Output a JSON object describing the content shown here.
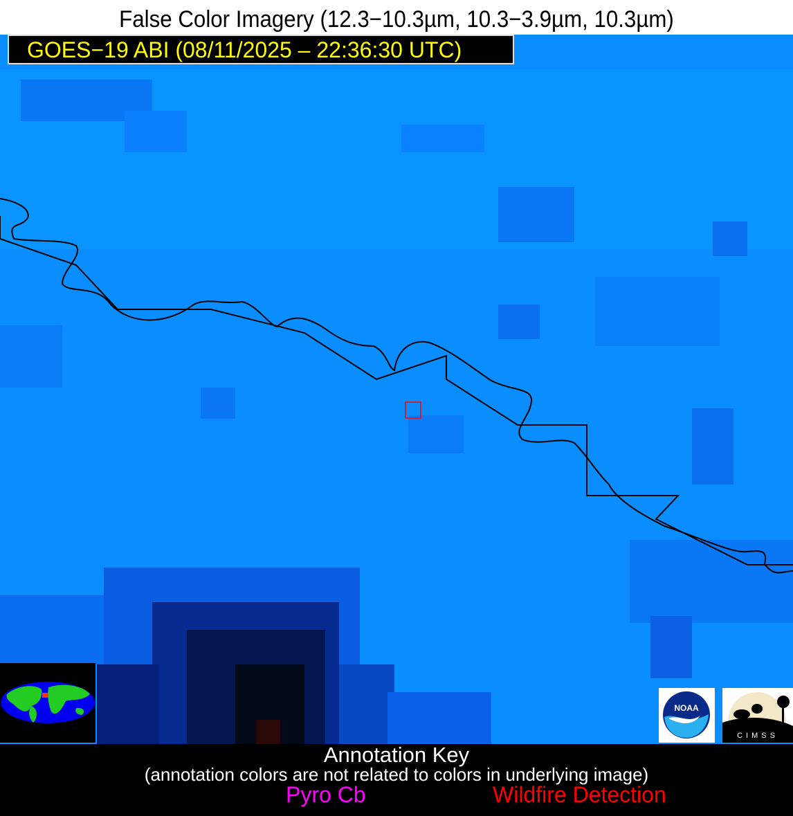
{
  "header": {
    "title": "False Color Imagery (12.3−10.3µm, 10.3−3.9µm, 10.3µm)",
    "satellite_label": "GOES−19 ABI (08/11/2025 – 22:36:30 UTC)"
  },
  "logos": {
    "noaa": "NOAA",
    "cimss": "CIMSS"
  },
  "annotation_key": {
    "title": "Annotation Key",
    "note": "(annotation colors are not related to colors in underlying image)",
    "items": [
      {
        "label": "Pyro Cb",
        "color": "#ff00ff"
      },
      {
        "label": "Wildfire Detection",
        "color": "#ff0000"
      }
    ]
  },
  "colors": {
    "imagery_base": "#0a8eff",
    "label_text": "#ffff00",
    "border_lines": "#000000",
    "detection_box": "#ff0000"
  }
}
